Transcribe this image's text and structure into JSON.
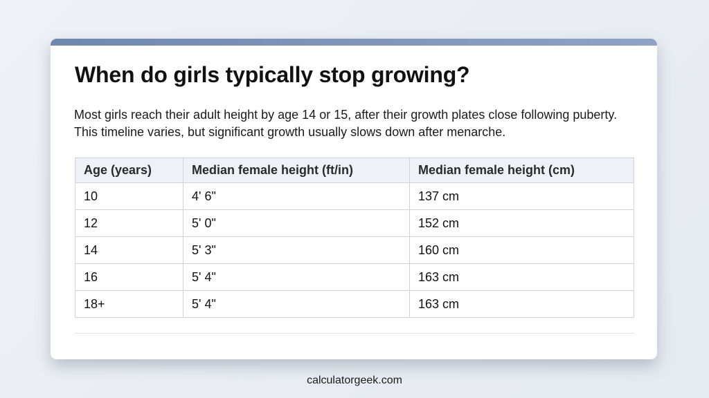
{
  "title": "When do girls typically stop growing?",
  "description": "Most girls reach their adult height by age 14 or 15, after their growth plates close following puberty. This timeline varies, but significant growth usually slows down after menarche.",
  "table": {
    "headers": [
      "Age (years)",
      "Median female height (ft/in)",
      "Median female height (cm)"
    ],
    "rows": [
      [
        "10",
        "4' 6\"",
        "137 cm"
      ],
      [
        "12",
        "5' 0\"",
        "152 cm"
      ],
      [
        "14",
        "5' 3\"",
        "160 cm"
      ],
      [
        "16",
        "5' 4\"",
        "163 cm"
      ],
      [
        "18+",
        "5' 4\"",
        "163 cm"
      ]
    ]
  },
  "footer": "calculatorgeek.com",
  "colors": {
    "accent_bar": "#7a93b8",
    "header_bg": "#eef1f6"
  }
}
